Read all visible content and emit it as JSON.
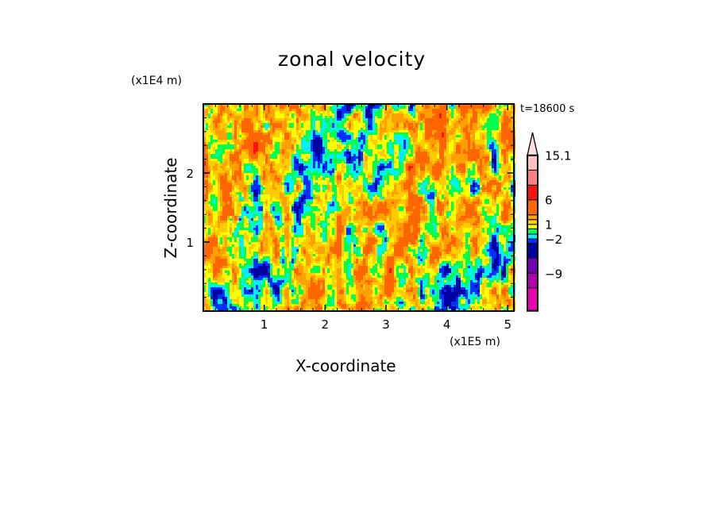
{
  "chart_data": {
    "type": "heatmap",
    "title": "zonal velocity",
    "xlabel": "X-coordinate",
    "ylabel": "Z-coordinate",
    "x_unit": "(x1E5 m)",
    "y_unit": "(x1E4 m)",
    "time_label": "t=18600 s",
    "xlim": [
      0,
      5.1
    ],
    "ylim": [
      0,
      3.0
    ],
    "x_ticks": [
      1,
      2,
      3,
      4,
      5
    ],
    "y_ticks": [
      1,
      2
    ],
    "x_tick_labels": [
      "1",
      "2",
      "3",
      "4",
      "5"
    ],
    "y_tick_labels": [
      "1",
      "2"
    ],
    "levels": [
      -12,
      -9,
      -6,
      -3,
      -2,
      -1,
      0,
      1,
      2,
      3,
      6,
      9,
      12,
      15.1
    ],
    "colors": [
      "#e800b0",
      "#b000b0",
      "#7000b0",
      "#0000a0",
      "#0030ff",
      "#00f0ff",
      "#00ff50",
      "#ffff00",
      "#ffcc00",
      "#ffa000",
      "#ff6600",
      "#ff1010",
      "#ff8080",
      "#ffc0c0",
      "#ffe0e0"
    ],
    "colorbar_labels": [
      {
        "value": 15.1,
        "text": "15.1"
      },
      {
        "value": 6,
        "text": "6"
      },
      {
        "value": 1,
        "text": "1"
      },
      {
        "value": -2,
        "text": "−2"
      },
      {
        "value": -9,
        "text": "−9"
      }
    ]
  }
}
